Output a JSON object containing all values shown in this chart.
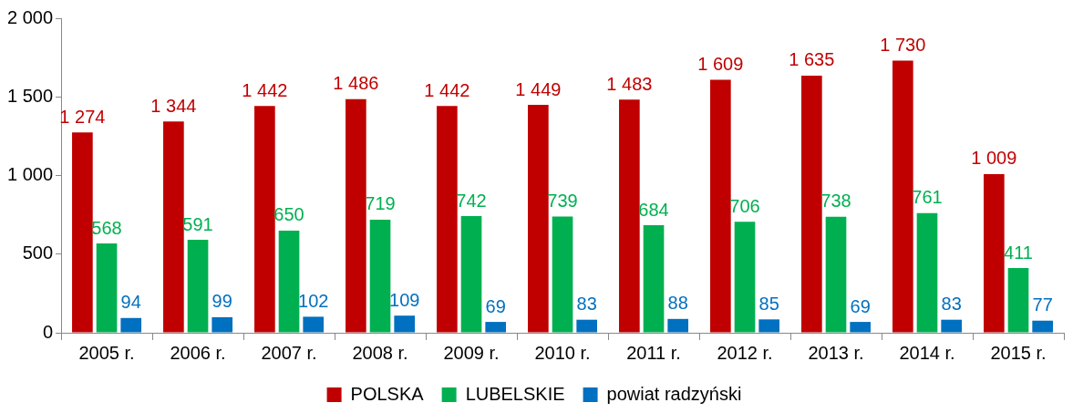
{
  "chart_data": {
    "type": "bar",
    "categories": [
      "2005 r.",
      "2006 r.",
      "2007 r.",
      "2008 r.",
      "2009 r.",
      "2010 r.",
      "2011 r.",
      "2012 r.",
      "2013 r.",
      "2014 r.",
      "2015 r."
    ],
    "series": [
      {
        "name": "POLSKA",
        "color": "#c00000",
        "values": [
          1274,
          1344,
          1442,
          1486,
          1442,
          1449,
          1483,
          1609,
          1635,
          1730,
          1009
        ],
        "value_labels": [
          "1 274",
          "1 344",
          "1 442",
          "1 486",
          "1 442",
          "1 449",
          "1 483",
          "1 609",
          "1 635",
          "1 730",
          "1 009"
        ]
      },
      {
        "name": "LUBELSKIE",
        "color": "#00b050",
        "values": [
          568,
          591,
          650,
          719,
          742,
          739,
          684,
          706,
          738,
          761,
          411
        ],
        "value_labels": [
          "568",
          "591",
          "650",
          "719",
          "742",
          "739",
          "684",
          "706",
          "738",
          "761",
          "411"
        ]
      },
      {
        "name": "powiat radzyński",
        "color": "#0070c0",
        "values": [
          94,
          99,
          102,
          109,
          69,
          83,
          88,
          85,
          69,
          83,
          77
        ],
        "value_labels": [
          "94",
          "99",
          "102",
          "109",
          "69",
          "83",
          "88",
          "85",
          "69",
          "83",
          "77"
        ]
      }
    ],
    "ylim": [
      0,
      2000
    ],
    "yticks": [
      {
        "value": 0,
        "label": "0"
      },
      {
        "value": 500,
        "label": "500"
      },
      {
        "value": 1000,
        "label": "1 000"
      },
      {
        "value": 1500,
        "label": "1 500"
      },
      {
        "value": 2000,
        "label": "2 000"
      }
    ],
    "grid": false,
    "legend": "bottom"
  }
}
